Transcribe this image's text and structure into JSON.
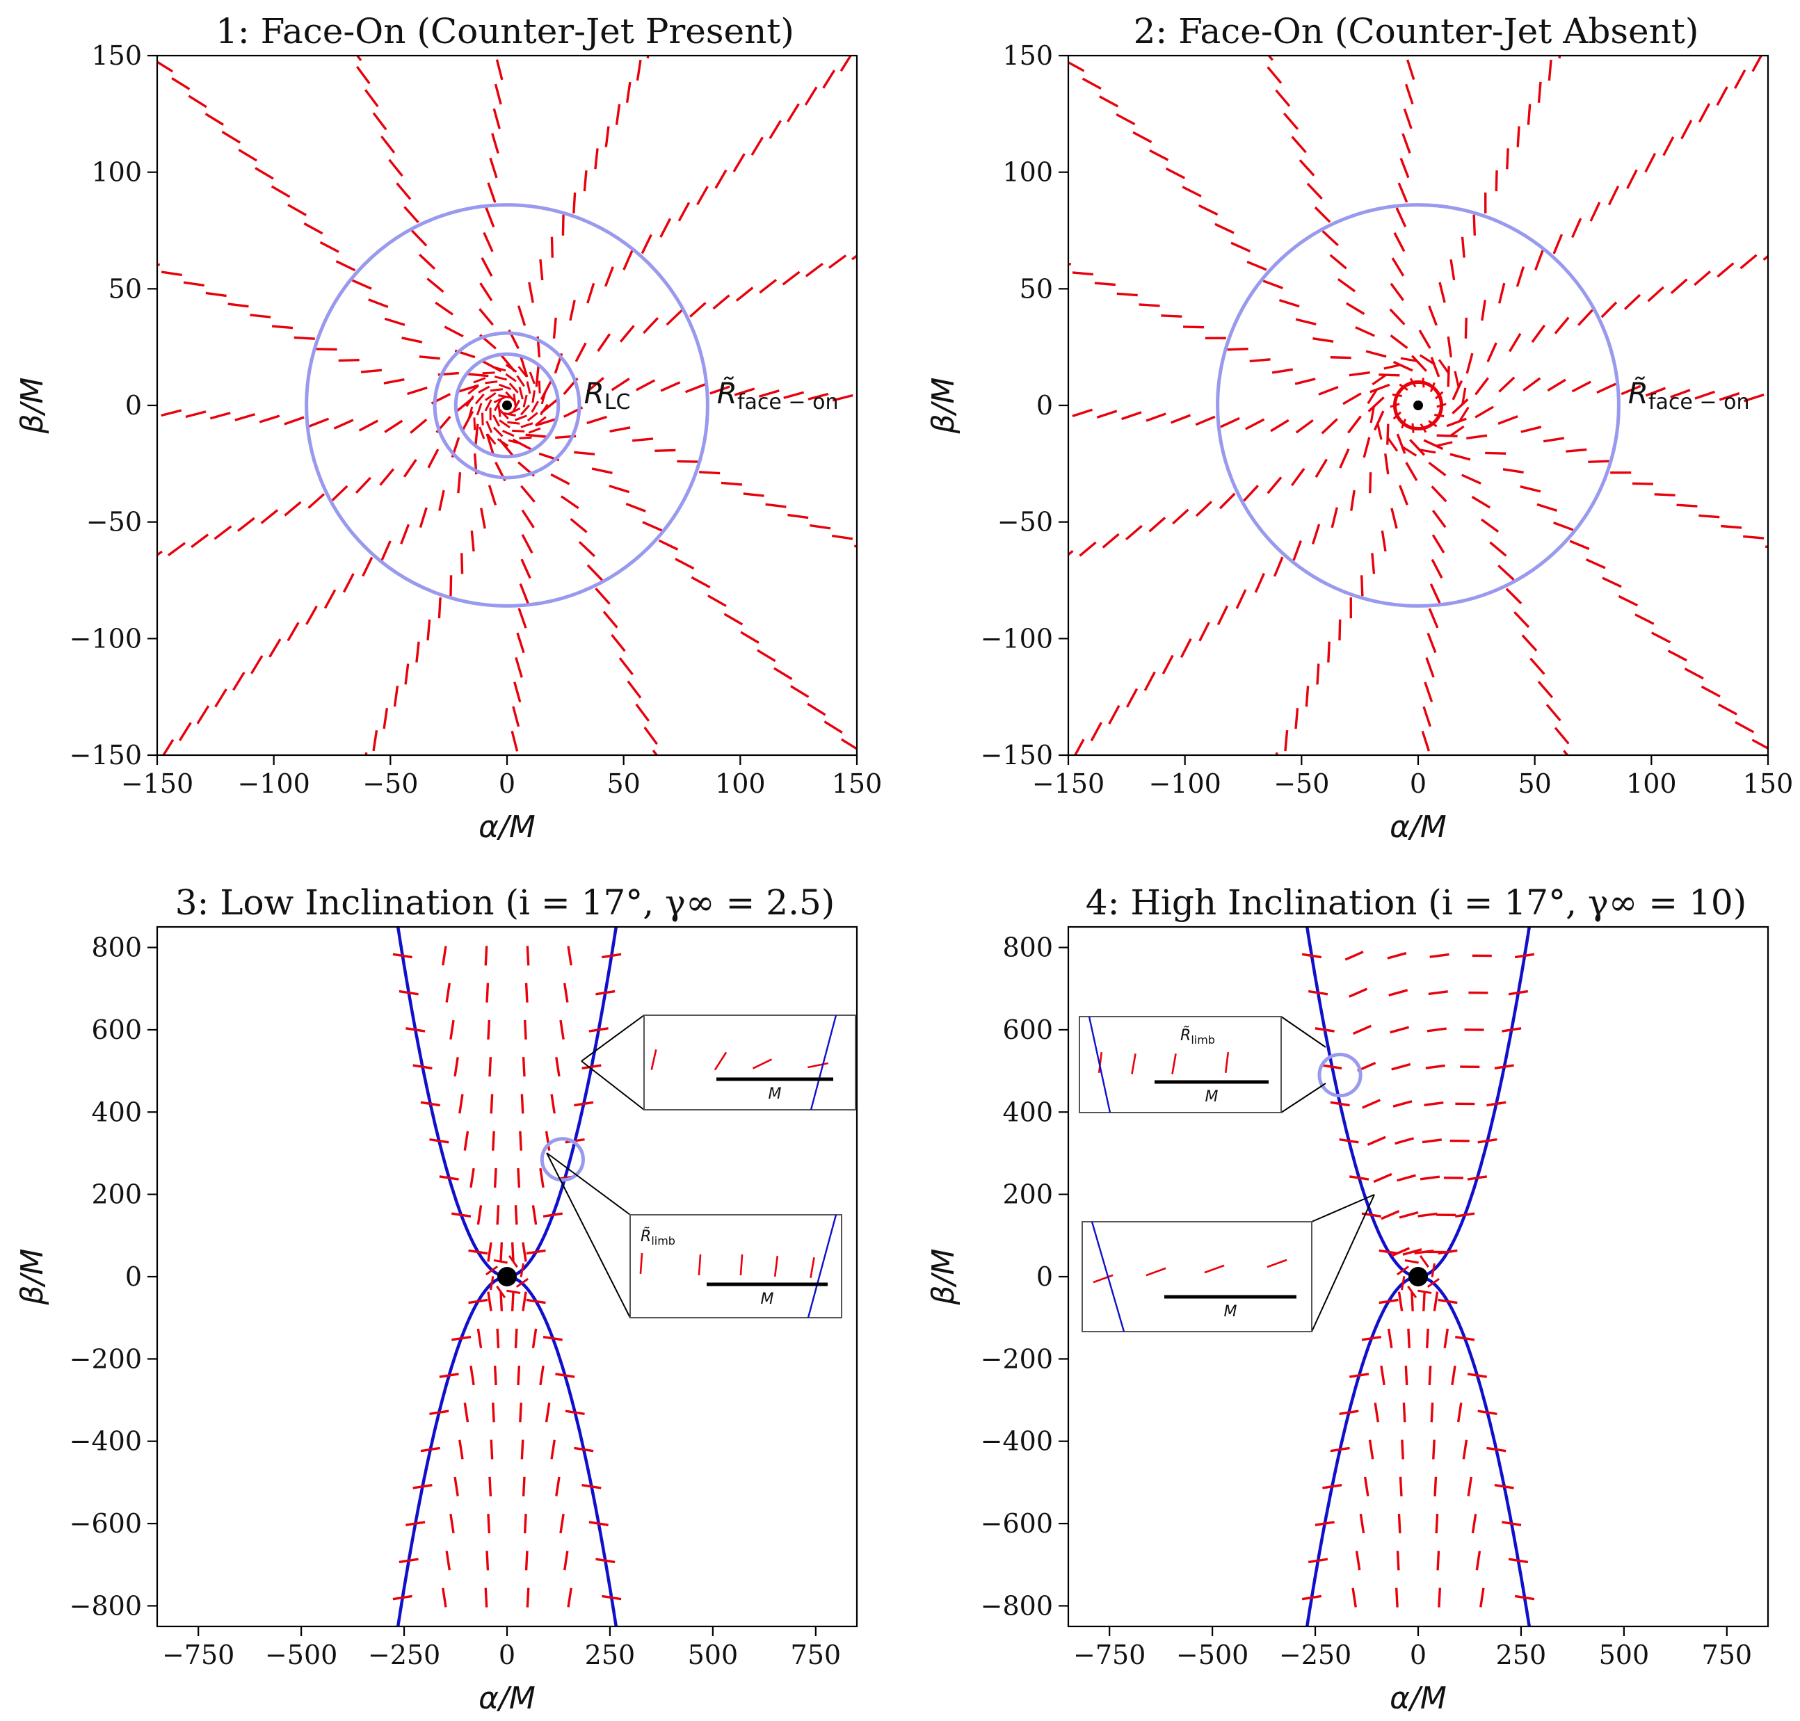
{
  "figure": {
    "panel_count": 4,
    "colors": {
      "polarization": "#e8000b",
      "circles": "#9999ee",
      "boundary": "#1010cc",
      "axis": "#000000",
      "center": "#000000"
    }
  },
  "chart_data": [
    {
      "type": "polarization-map",
      "title": "1: Face-On (Counter-Jet Present)",
      "xlabel": "α/M",
      "ylabel": "β/M",
      "xlim": [
        -150,
        150
      ],
      "ylim": [
        -150,
        150
      ],
      "xticks": [
        -150,
        -100,
        -50,
        0,
        50,
        100,
        150
      ],
      "yticks": [
        -150,
        -100,
        -50,
        0,
        50,
        100,
        150
      ],
      "xtick_labels": [
        "−150",
        "−100",
        "−50",
        "0",
        "50",
        "100",
        "150"
      ],
      "ytick_labels": [
        "−150",
        "−100",
        "−50",
        "0",
        "50",
        "100",
        "150"
      ],
      "circle_radii": [
        22,
        31,
        86
      ],
      "annotations": [
        {
          "text": "R",
          "sub": "LC",
          "at": [
            33,
            5
          ]
        },
        {
          "text": "R̃",
          "sub": "face − on",
          "at": [
            90,
            5
          ]
        }
      ],
      "spokes": 16,
      "inner_swirl": true
    },
    {
      "type": "polarization-map",
      "title": "2: Face-On (Counter-Jet Absent)",
      "xlabel": "α/M",
      "ylabel": "β/M",
      "xlim": [
        -150,
        150
      ],
      "ylim": [
        -150,
        150
      ],
      "xticks": [
        -150,
        -100,
        -50,
        0,
        50,
        100,
        150
      ],
      "yticks": [
        -150,
        -100,
        -50,
        0,
        50,
        100,
        150
      ],
      "xtick_labels": [
        "−150",
        "−100",
        "−50",
        "0",
        "50",
        "100",
        "150"
      ],
      "ytick_labels": [
        "−150",
        "−100",
        "−50",
        "0",
        "50",
        "100",
        "150"
      ],
      "circle_radii": [
        86
      ],
      "annotations": [
        {
          "text": "R̃",
          "sub": "face − on",
          "at": [
            90,
            5
          ]
        }
      ],
      "spokes": 16,
      "red_ring_radius": 10
    },
    {
      "type": "polarization-map",
      "title": "3: Low Inclination (i = 17°, γ∞ = 2.5)",
      "xlabel": "α/M",
      "ylabel": "β/M",
      "xlim": [
        -850,
        850
      ],
      "ylim": [
        -850,
        850
      ],
      "xticks": [
        -750,
        -500,
        -250,
        0,
        250,
        500,
        750
      ],
      "yticks": [
        -800,
        -600,
        -400,
        -200,
        0,
        200,
        400,
        600,
        800
      ],
      "xtick_labels": [
        "−750",
        "−500",
        "−250",
        "0",
        "250",
        "500",
        "750"
      ],
      "ytick_labels": [
        "−800",
        "−600",
        "−400",
        "−200",
        "0",
        "200",
        "400",
        "600",
        "800"
      ],
      "boundary_halfwidth_at_850": 265,
      "limb_circle": {
        "center": [
          135,
          285
        ],
        "radius": 50
      },
      "insets": [
        {
          "label": "",
          "scale_label": "M"
        },
        {
          "label": "R̃",
          "label_sub": "limb",
          "scale_label": "M"
        }
      ]
    },
    {
      "type": "polarization-map",
      "title": "4: High Inclination (i = 17°, γ∞ = 10)",
      "xlabel": "α/M",
      "ylabel": "β/M",
      "xlim": [
        -850,
        850
      ],
      "ylim": [
        -850,
        850
      ],
      "xticks": [
        -750,
        -500,
        -250,
        0,
        250,
        500,
        750
      ],
      "yticks": [
        -800,
        -600,
        -400,
        -200,
        0,
        200,
        400,
        600,
        800
      ],
      "xtick_labels": [
        "−750",
        "−500",
        "−250",
        "0",
        "250",
        "500",
        "750"
      ],
      "ytick_labels": [
        "−800",
        "−600",
        "−400",
        "−200",
        "0",
        "200",
        "400",
        "600",
        "800"
      ],
      "boundary_halfwidth_at_850": 270,
      "limb_circle": {
        "center": [
          -190,
          490
        ],
        "radius": 50
      },
      "insets": [
        {
          "label": "R̃",
          "label_sub": "limb",
          "scale_label": "M"
        },
        {
          "label": "",
          "scale_label": "M"
        }
      ]
    }
  ]
}
